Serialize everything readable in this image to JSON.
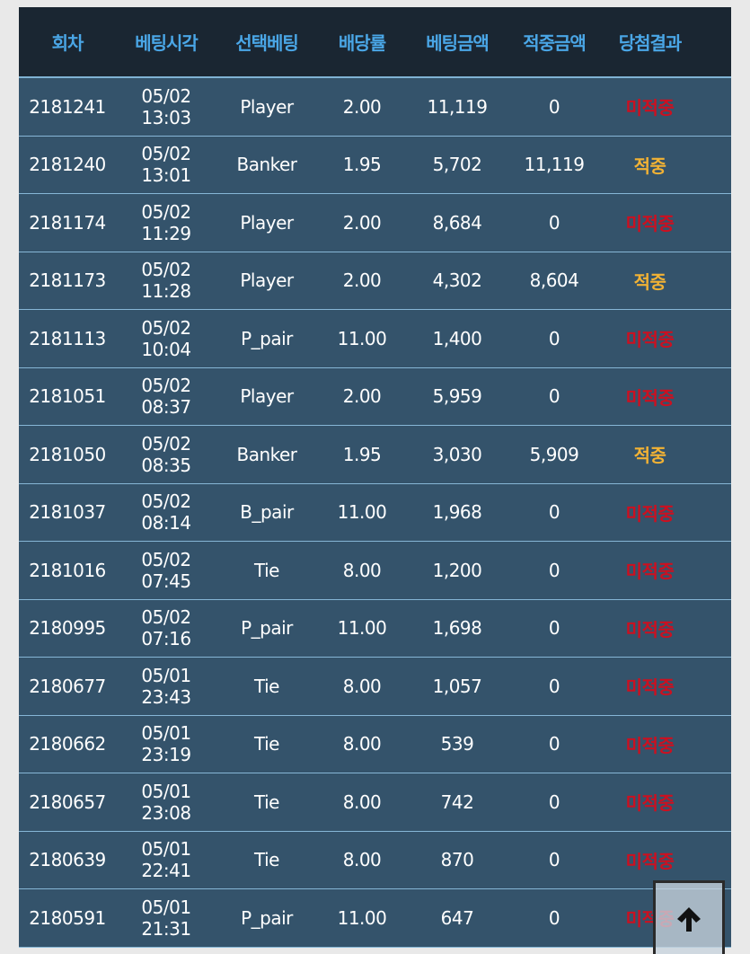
{
  "headers": [
    "회차",
    "베팅시각",
    "선택베팅",
    "배당률",
    "베팅금액",
    "적중금액",
    "당첨결과"
  ],
  "colors": {
    "header_text": "#4aa6e6",
    "lose": "#cc1020",
    "win": "#f2b234",
    "row_bg": "#34536b",
    "header_bg": "#1a2632"
  },
  "rows": [
    [
      "2181241",
      "05/02 13:03",
      "Player",
      "2.00",
      "11,119",
      "0",
      "미적중"
    ],
    [
      "2181240",
      "05/02 13:01",
      "Banker",
      "1.95",
      "5,702",
      "11,119",
      "적중"
    ],
    [
      "2181174",
      "05/02 11:29",
      "Player",
      "2.00",
      "8,684",
      "0",
      "미적중"
    ],
    [
      "2181173",
      "05/02 11:28",
      "Player",
      "2.00",
      "4,302",
      "8,604",
      "적중"
    ],
    [
      "2181113",
      "05/02 10:04",
      "P_pair",
      "11.00",
      "1,400",
      "0",
      "미적중"
    ],
    [
      "2181051",
      "05/02 08:37",
      "Player",
      "2.00",
      "5,959",
      "0",
      "미적중"
    ],
    [
      "2181050",
      "05/02 08:35",
      "Banker",
      "1.95",
      "3,030",
      "5,909",
      "적중"
    ],
    [
      "2181037",
      "05/02 08:14",
      "B_pair",
      "11.00",
      "1,968",
      "0",
      "미적중"
    ],
    [
      "2181016",
      "05/02 07:45",
      "Tie",
      "8.00",
      "1,200",
      "0",
      "미적중"
    ],
    [
      "2180995",
      "05/02 07:16",
      "P_pair",
      "11.00",
      "1,698",
      "0",
      "미적중"
    ],
    [
      "2180677",
      "05/01 23:43",
      "Tie",
      "8.00",
      "1,057",
      "0",
      "미적중"
    ],
    [
      "2180662",
      "05/01 23:19",
      "Tie",
      "8.00",
      "539",
      "0",
      "미적중"
    ],
    [
      "2180657",
      "05/01 23:08",
      "Tie",
      "8.00",
      "742",
      "0",
      "미적중"
    ],
    [
      "2180639",
      "05/01 22:41",
      "Tie",
      "8.00",
      "870",
      "0",
      "미적중"
    ],
    [
      "2180591",
      "05/01 21:31",
      "P_pair",
      "11.00",
      "647",
      "0",
      "미적중"
    ]
  ],
  "scroll_top_icon": "arrow-up-icon"
}
